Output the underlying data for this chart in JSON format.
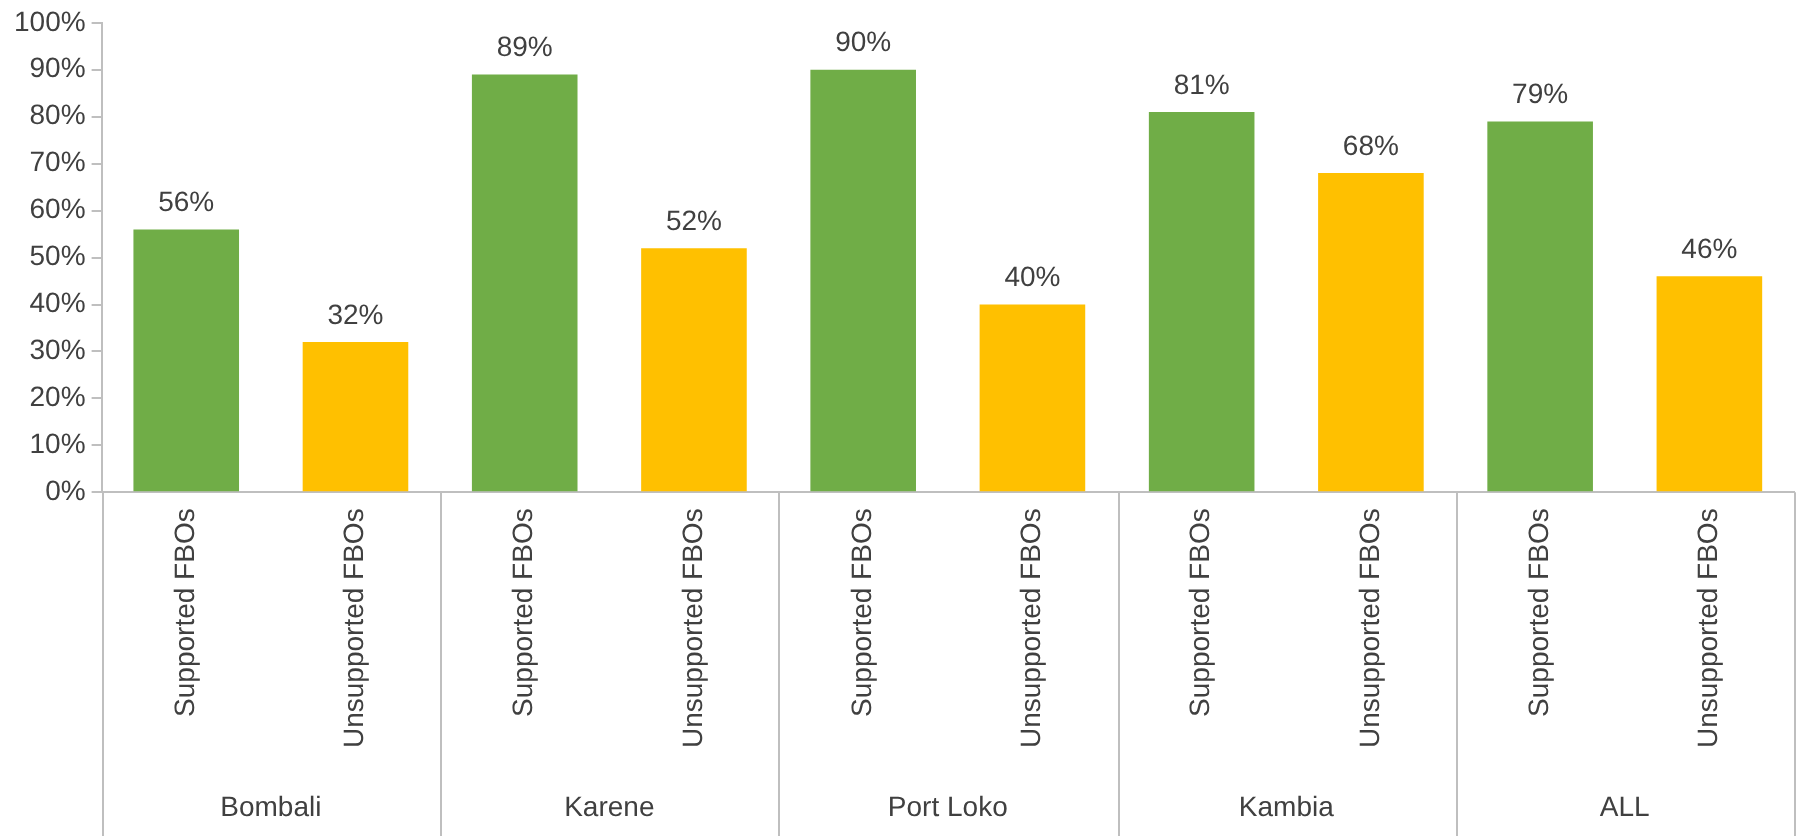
{
  "chart_data": {
    "type": "bar",
    "categories": [
      "Supported FBOs",
      "Unsupported FBOs",
      "Supported FBOs",
      "Unsupported FBOs",
      "Supported FBOs",
      "Unsupported FBOs",
      "Supported FBOs",
      "Unsupported FBOs",
      "Supported FBOs",
      "Unsupported FBOs"
    ],
    "values": [
      56,
      32,
      89,
      52,
      90,
      40,
      81,
      68,
      79,
      46
    ],
    "colors": [
      "#70ad47",
      "#ffc000",
      "#70ad47",
      "#ffc000",
      "#70ad47",
      "#ffc000",
      "#70ad47",
      "#ffc000",
      "#70ad47",
      "#ffc000"
    ],
    "value_labels": [
      "56%",
      "32%",
      "89%",
      "52%",
      "90%",
      "40%",
      "81%",
      "68%",
      "79%",
      "46%"
    ],
    "annotations": [
      "Bombali",
      "Karene",
      "Port Loko",
      "Kambia",
      "ALL"
    ],
    "ylim": [
      0,
      100
    ],
    "yticks": [
      {
        "value": 0,
        "label": "0%"
      },
      {
        "value": 10,
        "label": "10%"
      },
      {
        "value": 20,
        "label": "20%"
      },
      {
        "value": 30,
        "label": "30%"
      },
      {
        "value": 40,
        "label": "40%"
      },
      {
        "value": 50,
        "label": "50%"
      },
      {
        "value": 60,
        "label": "60%"
      },
      {
        "value": 70,
        "label": "70%"
      },
      {
        "value": 80,
        "label": "80%"
      },
      {
        "value": 90,
        "label": "90%"
      },
      {
        "value": 100,
        "label": "100%"
      }
    ],
    "grid": false,
    "legend": false
  }
}
